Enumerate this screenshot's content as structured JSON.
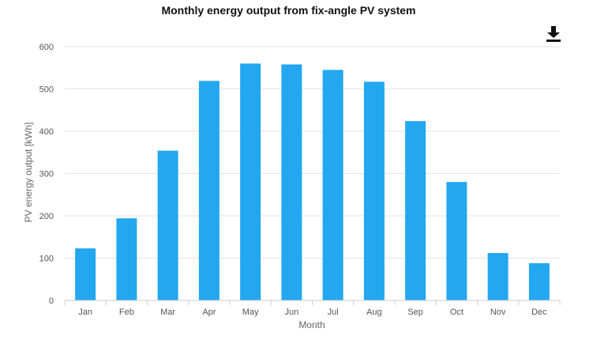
{
  "chart_data": {
    "type": "bar",
    "title": "Monthly energy output from fix-angle PV system",
    "xlabel": "Month",
    "ylabel": "PV energy output [kWh]",
    "categories": [
      "Jan",
      "Feb",
      "Mar",
      "Apr",
      "May",
      "Jun",
      "Jul",
      "Aug",
      "Sep",
      "Oct",
      "Nov",
      "Dec"
    ],
    "values": [
      123,
      194,
      354,
      519,
      560,
      558,
      545,
      517,
      424,
      280,
      112,
      88
    ],
    "ylim": [
      0,
      600
    ],
    "yticks": [
      0,
      100,
      200,
      300,
      400,
      500,
      600
    ],
    "grid": true,
    "legend": "none",
    "bar_color": "#22a7f0"
  },
  "toolbar": {
    "download_icon": "download-icon"
  }
}
